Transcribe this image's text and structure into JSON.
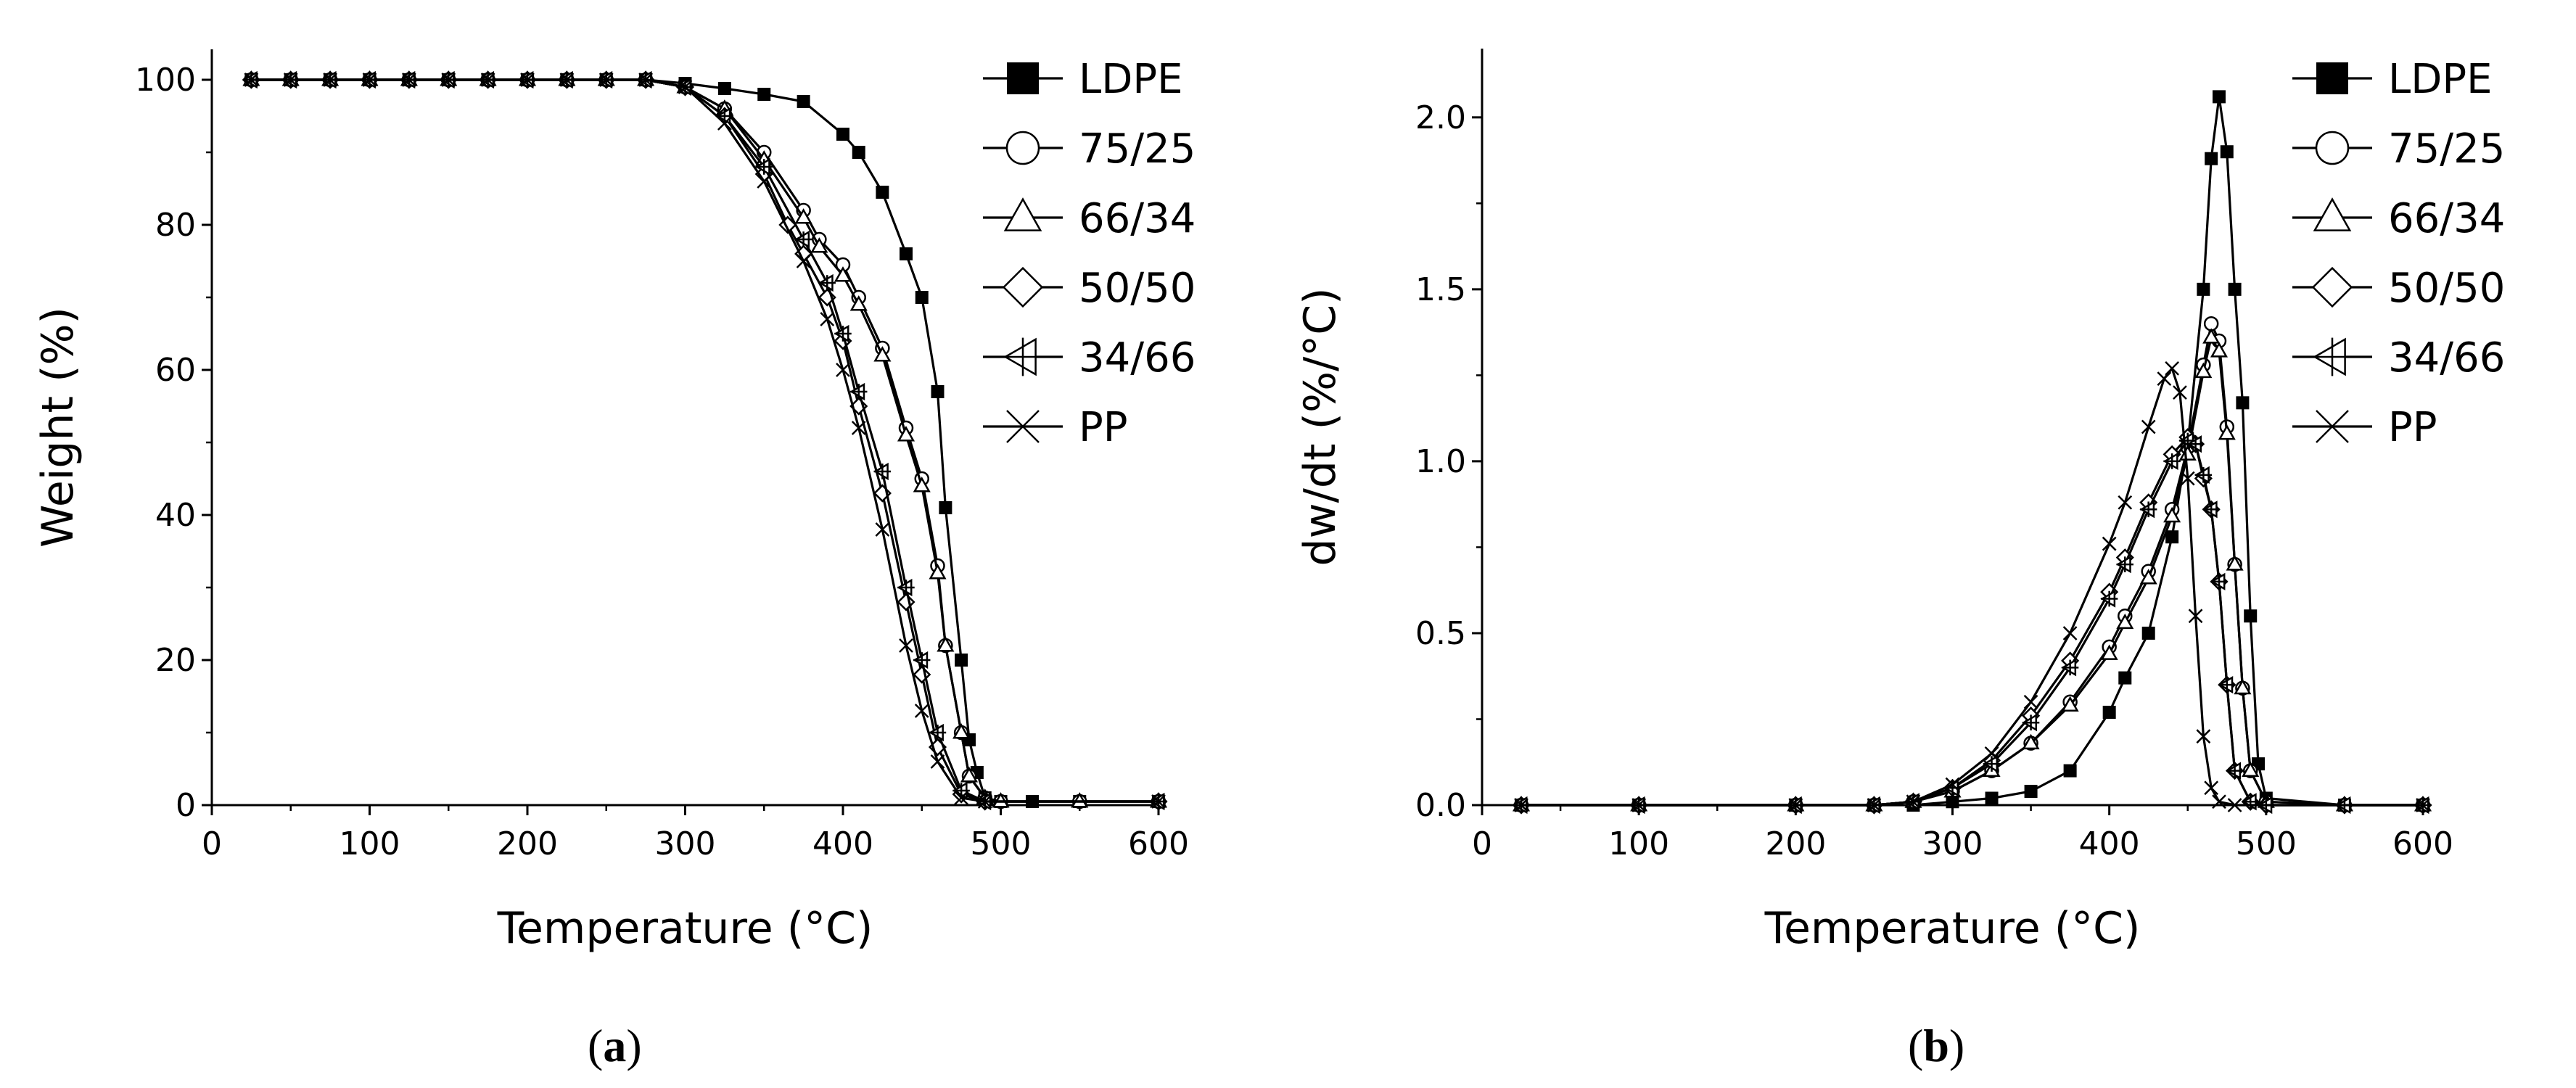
{
  "chart_data": [
    {
      "type": "line",
      "panel_label": "a",
      "xlabel": "Temperature (°C)",
      "ylabel": "Weight (%)",
      "xlim": [
        0,
        600
      ],
      "ylim": [
        0,
        100
      ],
      "xticks": [
        0,
        100,
        200,
        300,
        400,
        500,
        600
      ],
      "yticks": [
        0,
        20,
        40,
        60,
        80,
        100
      ],
      "legend_position": "top-right",
      "series": [
        {
          "name": "LDPE",
          "marker": "filled-square",
          "x": [
            25,
            50,
            75,
            100,
            125,
            150,
            175,
            200,
            225,
            250,
            275,
            300,
            325,
            350,
            375,
            400,
            410,
            425,
            440,
            450,
            460,
            465,
            475,
            480,
            485,
            490,
            500,
            520,
            550,
            600
          ],
          "y": [
            100,
            100,
            100,
            100,
            100,
            100,
            100,
            100,
            100,
            100,
            100,
            99.5,
            98.8,
            98,
            97,
            92.5,
            90,
            84.5,
            76,
            70,
            57,
            41,
            20,
            9,
            4.5,
            1,
            0.5,
            0.5,
            0.5,
            0.5
          ]
        },
        {
          "name": "75/25",
          "marker": "open-circle",
          "x": [
            25,
            50,
            75,
            100,
            125,
            150,
            175,
            200,
            225,
            250,
            275,
            300,
            325,
            350,
            375,
            385,
            400,
            410,
            425,
            440,
            450,
            460,
            465,
            475,
            480,
            490,
            500,
            550,
            600
          ],
          "y": [
            100,
            100,
            100,
            100,
            100,
            100,
            100,
            100,
            100,
            100,
            100,
            99,
            96,
            90,
            82,
            78,
            74.5,
            70,
            63,
            52,
            45,
            33,
            22,
            10,
            4,
            1,
            0.5,
            0.5,
            0.5
          ]
        },
        {
          "name": "66/34",
          "marker": "open-triangle",
          "x": [
            25,
            50,
            75,
            100,
            125,
            150,
            175,
            200,
            225,
            250,
            275,
            300,
            325,
            350,
            375,
            385,
            400,
            410,
            425,
            440,
            450,
            460,
            465,
            475,
            480,
            490,
            500,
            550,
            600
          ],
          "y": [
            100,
            100,
            100,
            100,
            100,
            100,
            100,
            100,
            100,
            100,
            100,
            99,
            96,
            89,
            81,
            77,
            73,
            69,
            62,
            51,
            44,
            32,
            22,
            10,
            4,
            1,
            0.5,
            0.5,
            0.5
          ]
        },
        {
          "name": "50/50",
          "marker": "open-diamond",
          "x": [
            25,
            50,
            75,
            100,
            125,
            150,
            175,
            200,
            225,
            250,
            275,
            300,
            325,
            350,
            365,
            375,
            390,
            400,
            410,
            425,
            440,
            450,
            460,
            475,
            490,
            600
          ],
          "y": [
            100,
            100,
            100,
            100,
            100,
            100,
            100,
            100,
            100,
            100,
            100,
            99,
            95,
            87,
            80,
            76,
            70,
            64,
            55,
            43,
            28,
            18,
            8,
            1.5,
            0.5,
            0.5
          ]
        },
        {
          "name": "34/66",
          "marker": "open-triangle-left-cross",
          "x": [
            25,
            50,
            75,
            100,
            125,
            150,
            175,
            200,
            225,
            250,
            275,
            300,
            325,
            350,
            375,
            390,
            400,
            410,
            425,
            440,
            450,
            460,
            475,
            490,
            600
          ],
          "y": [
            100,
            100,
            100,
            100,
            100,
            100,
            100,
            100,
            100,
            100,
            100,
            99,
            95,
            88,
            78,
            72,
            65,
            57,
            46,
            30,
            20,
            10,
            2,
            0.5,
            0.5
          ]
        },
        {
          "name": "PP",
          "marker": "cross",
          "x": [
            25,
            50,
            75,
            100,
            125,
            150,
            175,
            200,
            225,
            250,
            275,
            300,
            325,
            350,
            375,
            390,
            400,
            410,
            425,
            440,
            450,
            460,
            475,
            490,
            600
          ],
          "y": [
            100,
            100,
            100,
            100,
            100,
            100,
            100,
            100,
            100,
            100,
            100,
            99,
            94,
            86,
            75,
            67,
            60,
            52,
            38,
            22,
            13,
            6,
            1,
            0.5,
            0.5
          ]
        }
      ]
    },
    {
      "type": "line",
      "panel_label": "b",
      "xlabel": "Temperature (°C)",
      "ylabel": "dw/dt (%/°C)",
      "xlim": [
        0,
        600
      ],
      "ylim": [
        0,
        2.2
      ],
      "xticks": [
        0,
        100,
        200,
        300,
        400,
        500,
        600
      ],
      "yticks": [
        0.0,
        0.5,
        1.0,
        1.5,
        2.0
      ],
      "legend_position": "top-right",
      "series": [
        {
          "name": "LDPE",
          "marker": "filled-square",
          "x": [
            25,
            100,
            200,
            250,
            275,
            300,
            325,
            350,
            375,
            400,
            410,
            425,
            440,
            450,
            460,
            465,
            470,
            475,
            480,
            485,
            490,
            495,
            500,
            550,
            600
          ],
          "y": [
            0,
            0,
            0,
            0,
            0,
            0.01,
            0.02,
            0.04,
            0.1,
            0.27,
            0.37,
            0.5,
            0.78,
            1.05,
            1.5,
            1.88,
            2.06,
            1.9,
            1.5,
            1.17,
            0.55,
            0.12,
            0.02,
            0,
            0
          ]
        },
        {
          "name": "75/25",
          "marker": "open-circle",
          "x": [
            25,
            100,
            200,
            250,
            275,
            300,
            325,
            350,
            375,
            400,
            410,
            425,
            440,
            450,
            460,
            465,
            470,
            475,
            480,
            485,
            490,
            500,
            550,
            600
          ],
          "y": [
            0,
            0,
            0,
            0,
            0.01,
            0.04,
            0.1,
            0.18,
            0.3,
            0.46,
            0.55,
            0.68,
            0.86,
            1.04,
            1.28,
            1.4,
            1.35,
            1.1,
            0.7,
            0.34,
            0.1,
            0.01,
            0,
            0
          ]
        },
        {
          "name": "66/34",
          "marker": "open-triangle",
          "x": [
            25,
            100,
            200,
            250,
            275,
            300,
            325,
            350,
            375,
            400,
            410,
            425,
            440,
            450,
            460,
            465,
            470,
            475,
            480,
            485,
            490,
            500,
            550,
            600
          ],
          "y": [
            0,
            0,
            0,
            0,
            0.01,
            0.04,
            0.1,
            0.18,
            0.29,
            0.44,
            0.53,
            0.66,
            0.84,
            1.02,
            1.26,
            1.36,
            1.32,
            1.08,
            0.7,
            0.34,
            0.1,
            0.01,
            0,
            0
          ]
        },
        {
          "name": "50/50",
          "marker": "open-diamond",
          "x": [
            25,
            100,
            200,
            250,
            275,
            300,
            325,
            350,
            375,
            400,
            410,
            425,
            440,
            450,
            455,
            460,
            465,
            470,
            475,
            480,
            490,
            500,
            550,
            600
          ],
          "y": [
            0,
            0,
            0,
            0,
            0.01,
            0.05,
            0.13,
            0.26,
            0.42,
            0.62,
            0.72,
            0.88,
            1.02,
            1.07,
            1.05,
            0.95,
            0.86,
            0.65,
            0.35,
            0.1,
            0.01,
            0,
            0,
            0
          ]
        },
        {
          "name": "34/66",
          "marker": "open-triangle-left-cross",
          "x": [
            25,
            100,
            200,
            250,
            275,
            300,
            325,
            350,
            375,
            400,
            410,
            425,
            440,
            450,
            455,
            460,
            465,
            470,
            475,
            480,
            490,
            500,
            550,
            600
          ],
          "y": [
            0,
            0,
            0,
            0,
            0.01,
            0.05,
            0.12,
            0.24,
            0.4,
            0.6,
            0.7,
            0.86,
            1.0,
            1.06,
            1.05,
            0.96,
            0.86,
            0.65,
            0.35,
            0.1,
            0.01,
            0,
            0,
            0
          ]
        },
        {
          "name": "PP",
          "marker": "cross",
          "x": [
            25,
            100,
            200,
            250,
            275,
            300,
            325,
            350,
            375,
            400,
            410,
            425,
            435,
            440,
            445,
            450,
            455,
            460,
            465,
            470,
            480,
            600
          ],
          "y": [
            0,
            0,
            0,
            0,
            0.01,
            0.06,
            0.15,
            0.3,
            0.5,
            0.76,
            0.88,
            1.1,
            1.24,
            1.27,
            1.2,
            0.95,
            0.55,
            0.2,
            0.05,
            0.01,
            0,
            0
          ]
        }
      ]
    }
  ]
}
